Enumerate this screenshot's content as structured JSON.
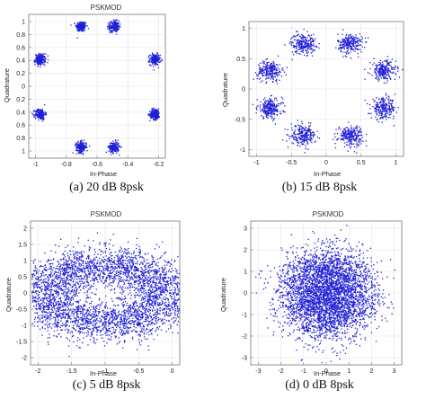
{
  "chart_data": [
    {
      "type": "scatter",
      "title": "PSKMOD",
      "xlabel": "In-Phase",
      "ylabel": "Quadrature",
      "caption": "(a)  20 dB  8psk",
      "x_ticks": [
        "-1",
        "-0.8",
        "-0.6",
        "-0.4",
        "-0.2"
      ],
      "y_ticks": [
        "1",
        "0.8",
        "0.6",
        "0.4",
        "0.2",
        "0",
        "0.2",
        "0.4",
        "0.6",
        "0.8",
        "1"
      ],
      "color": "#1f1fd6",
      "grid": true,
      "clusters": [
        {
          "x": 0.38,
          "y": 0.92,
          "spread": 0.045
        },
        {
          "x": 0.62,
          "y": 0.92,
          "spread": 0.045
        },
        {
          "x": 0.08,
          "y": 0.69,
          "spread": 0.045
        },
        {
          "x": 0.92,
          "y": 0.69,
          "spread": 0.045
        },
        {
          "x": 0.08,
          "y": 0.31,
          "spread": 0.045
        },
        {
          "x": 0.92,
          "y": 0.31,
          "spread": 0.045
        },
        {
          "x": 0.38,
          "y": 0.08,
          "spread": 0.045
        },
        {
          "x": 0.62,
          "y": 0.08,
          "spread": 0.045
        }
      ],
      "points_per_cluster": 200
    },
    {
      "type": "scatter",
      "title": "",
      "xlabel": "In-Phase",
      "ylabel": "Quadrature",
      "caption": "(b) 15 dB 8psk",
      "x_ticks": [
        "-1",
        "-0.5",
        "0",
        "0.5",
        "1"
      ],
      "y_ticks": [
        "1",
        "0.5",
        "0",
        "-0.5",
        "-1"
      ],
      "color": "#1f1fd6",
      "grid": true,
      "clusters": [
        {
          "x": -0.38,
          "y": 0.92,
          "spread": 0.1
        },
        {
          "x": 0.38,
          "y": 0.92,
          "spread": 0.1
        },
        {
          "x": -0.92,
          "y": 0.38,
          "spread": 0.1
        },
        {
          "x": 0.92,
          "y": 0.38,
          "spread": 0.1
        },
        {
          "x": -0.92,
          "y": -0.38,
          "spread": 0.1
        },
        {
          "x": 0.92,
          "y": -0.38,
          "spread": 0.1
        },
        {
          "x": -0.38,
          "y": -0.92,
          "spread": 0.1
        },
        {
          "x": 0.38,
          "y": -0.92,
          "spread": 0.1
        }
      ],
      "xlim": [
        -1.25,
        1.25
      ],
      "ylim": [
        -1.35,
        1.35
      ],
      "points_per_cluster": 240
    },
    {
      "type": "scatter",
      "title": "PSKMOD",
      "xlabel": "In-Phase",
      "ylabel": "Quadrature",
      "caption": "(c)  5 dB 8psk",
      "x_ticks": [
        "-2",
        "-1.5",
        "-1",
        "-0.5",
        "0"
      ],
      "y_ticks": [
        "2",
        "1.5",
        "1",
        "0.5",
        "0",
        "-0.5",
        "-1",
        "-1.5",
        "-2"
      ],
      "color": "#1f1fd6",
      "grid": true,
      "ring_radius": 0.95,
      "noise_sigma": 0.32,
      "center": [
        -1,
        0
      ],
      "xlim": [
        -2.2,
        0.2
      ],
      "ylim": [
        -2.3,
        2.3
      ],
      "total_points": 3800
    },
    {
      "type": "scatter",
      "title": "PSKMOD",
      "xlabel": "In-Phase",
      "ylabel": "Quadrature",
      "caption": "(d) 0 dB 8psk",
      "x_ticks": [
        "-3",
        "-2",
        "-1",
        "0",
        "1",
        "2",
        "3"
      ],
      "y_ticks": [
        "3",
        "2",
        "1",
        "0",
        "-1",
        "-2",
        "-3"
      ],
      "color": "#1f1fd6",
      "grid": true,
      "ring_radius": 1.0,
      "noise_sigma": 0.72,
      "center": [
        0,
        0
      ],
      "xlim": [
        -3.3,
        3.3
      ],
      "ylim": [
        -3.3,
        3.3
      ],
      "total_points": 3800
    }
  ]
}
